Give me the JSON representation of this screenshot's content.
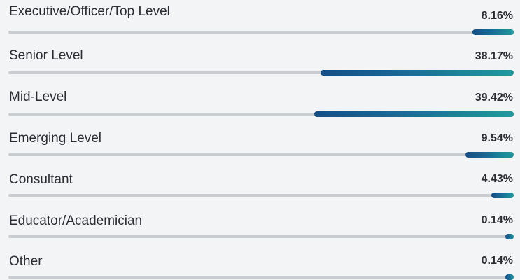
{
  "chart_data": {
    "type": "bar",
    "orientation": "horizontal",
    "categories": [
      "Executive/Officer/Top Level",
      "Senior Level",
      "Mid-Level",
      "Emerging Level",
      "Consultant",
      "Educator/Academician",
      "Other"
    ],
    "values": [
      8.16,
      38.17,
      39.42,
      9.54,
      4.43,
      0.14,
      0.14
    ],
    "value_labels": [
      "8.16%",
      "38.17%",
      "39.42%",
      "9.54%",
      "4.43%",
      "0.14%",
      "0.14%"
    ],
    "unit": "%",
    "xlim": [
      0,
      100
    ],
    "bar_direction": "right-aligned",
    "colors": {
      "gradient_start": "#144e86",
      "gradient_end": "#1f9a9e",
      "track": "#c9ccd1",
      "text": "#2a2d33",
      "background": "#f3f4f6"
    },
    "grid": false,
    "legend": "none"
  }
}
